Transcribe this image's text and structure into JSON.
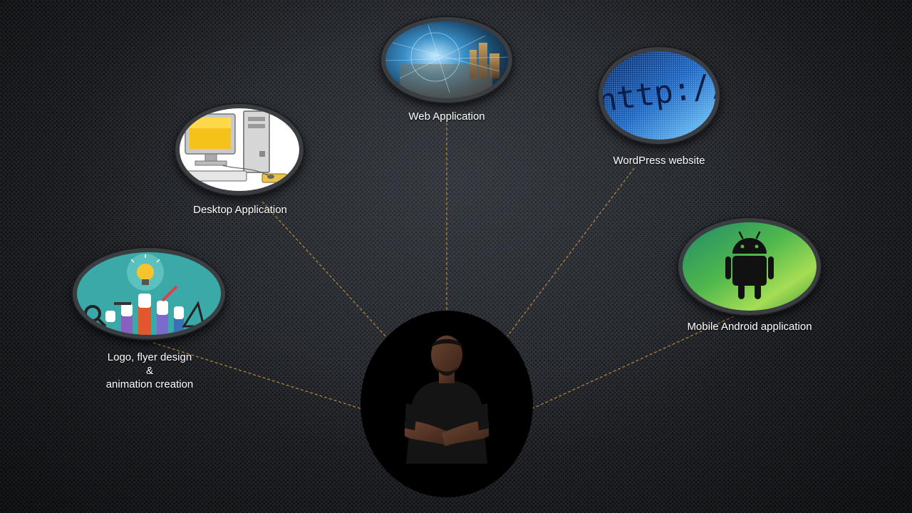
{
  "services": [
    {
      "id": "web",
      "label": "Web Application"
    },
    {
      "id": "wordpress",
      "label": "WordPress website",
      "image_text": "http://www"
    },
    {
      "id": "desktop",
      "label": "Desktop Application"
    },
    {
      "id": "android",
      "label": "Mobile Android application"
    },
    {
      "id": "design",
      "label_lines": [
        "Logo, flyer  design",
        "&",
        "animation creation"
      ]
    }
  ],
  "colors": {
    "connector": "#c8963c",
    "background": "#2b2e34",
    "android_green": "#4fb84c",
    "design_teal": "#3aa9a8"
  }
}
